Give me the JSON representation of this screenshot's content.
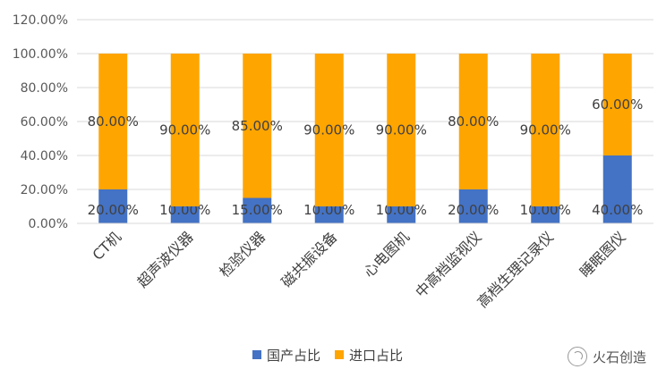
{
  "chart_data": {
    "type": "bar",
    "stacked": true,
    "categories": [
      "CT机",
      "超声波仪器",
      "检验仪器",
      "磁共振设备",
      "心电图机",
      "中高档监视仪",
      "高档生理记录仪",
      "睡眠图仪"
    ],
    "series": [
      {
        "name": "国产占比",
        "color": "#4472c4",
        "values": [
          20,
          10,
          15,
          10,
          10,
          20,
          10,
          40
        ],
        "labels": [
          "20.00%",
          "10.00%",
          "15.00%",
          "10.00%",
          "10.00%",
          "20.00%",
          "10.00%",
          "40.00%"
        ]
      },
      {
        "name": "进口占比",
        "color": "#ffa500",
        "values": [
          80,
          90,
          85,
          90,
          90,
          80,
          90,
          60
        ],
        "labels": [
          "80.00%",
          "90.00%",
          "85.00%",
          "90.00%",
          "90.00%",
          "80.00%",
          "90.00%",
          "60.00%"
        ]
      }
    ],
    "yticks": [
      "0.00%",
      "20.00%",
      "40.00%",
      "60.00%",
      "80.00%",
      "100.00%",
      "120.00%"
    ],
    "ylim": [
      0,
      120
    ],
    "grid": true,
    "legend": "bottom"
  },
  "watermark": {
    "text": "火石创造"
  }
}
